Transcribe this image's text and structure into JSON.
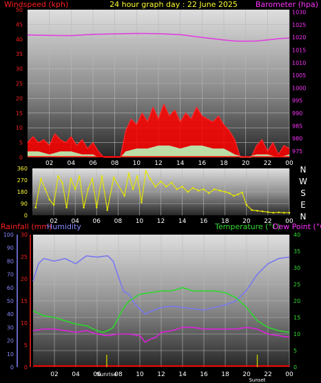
{
  "header": {
    "title": "24 hour graph day : 22 June 2025",
    "left_label": "Windspeed (kph)",
    "right_label": "Barometer (hpa)"
  },
  "colors": {
    "wind": "#ff0000",
    "gust": "#ff2a2a",
    "wind_avg": "#b8f5b8",
    "barometer": "#e040e0",
    "direction": "#e6e600",
    "rainfall": "#ff0000",
    "humidity": "#7878f0",
    "temperature": "#2cd82c",
    "dewpoint": "#dd22dd",
    "sun": "#c8c800",
    "axis_text_red": "#ff2020",
    "axis_text_magenta": "#ff33ff",
    "axis_text_blue": "#8888ff",
    "axis_text_green": "#33dd33",
    "axis_text_yellow": "#ffff33",
    "axis_text_white": "#ffffff"
  },
  "chart_data": [
    {
      "type": "line",
      "name": "wind-barometer",
      "title": "24 hour graph day : 22 June 2025",
      "x_ticks": [
        "02",
        "04",
        "06",
        "08",
        "10",
        "12",
        "14",
        "16",
        "18",
        "20",
        "22",
        "00"
      ],
      "x_range_hours": [
        0,
        24
      ],
      "y_left": {
        "label": "Windspeed (kph)",
        "range": [
          0,
          50
        ],
        "ticks": [
          "0",
          "5",
          "10",
          "15",
          "20",
          "25",
          "30",
          "35",
          "40",
          "45",
          "50"
        ]
      },
      "y_right": {
        "label": "Barometer (hpa)",
        "range": [
          972.5,
          1031
        ],
        "ticks": [
          "975",
          "980",
          "985",
          "990",
          "995",
          "1000",
          "1005",
          "1010",
          "1015",
          "1020",
          "1025",
          "1030"
        ]
      },
      "series": [
        {
          "name": "Barometer (hpa)",
          "axis": "right",
          "x": [
            0,
            2,
            4,
            6,
            8,
            10,
            12,
            14,
            16,
            18,
            19,
            20,
            21,
            22,
            23,
            24
          ],
          "values": [
            1021.0,
            1020.8,
            1020.7,
            1021.2,
            1021.4,
            1021.6,
            1021.5,
            1021.1,
            1020.0,
            1019.0,
            1018.6,
            1018.5,
            1018.6,
            1019.0,
            1019.5,
            1019.8
          ]
        },
        {
          "axis": "left",
          "x": [
            0,
            0.5,
            1,
            1.5,
            2,
            2.5,
            3,
            3.5,
            4,
            4.5,
            5,
            5.5,
            6,
            6.5,
            7,
            7.5,
            8,
            8.5,
            9,
            9.5,
            10,
            10.5,
            11,
            11.5,
            12,
            12.5,
            13,
            13.5,
            14,
            14.5,
            15,
            15.5,
            16,
            16.5,
            17,
            17.5,
            18,
            18.5,
            19,
            19.5,
            20,
            20.5,
            21,
            21.5,
            22,
            22.5,
            23,
            23.5,
            24
          ],
          "values": [
            5,
            7,
            5,
            6,
            4,
            8,
            6,
            5,
            7,
            4,
            6,
            3,
            5,
            2,
            0,
            0,
            0,
            0,
            9,
            13,
            11,
            15,
            12,
            17,
            13,
            18,
            14,
            16,
            12,
            15,
            13,
            17,
            14,
            13,
            12,
            14,
            11,
            9,
            6,
            0,
            0,
            0,
            4,
            6,
            2,
            5,
            1,
            4,
            3
          ]
        },
        {
          "axis": "left",
          "x": [
            0,
            1,
            2,
            3,
            4,
            5,
            6,
            6.5,
            7,
            8,
            8.5,
            9,
            10,
            11,
            12,
            13,
            14,
            15,
            16,
            17,
            18,
            18.5,
            19,
            20,
            21,
            22,
            23,
            24
          ],
          "values": [
            2,
            2,
            1,
            2,
            2,
            1,
            1,
            0,
            0,
            0,
            0,
            2,
            3,
            3,
            4,
            4,
            3,
            4,
            4,
            3,
            3,
            2,
            1,
            0,
            1,
            1,
            0,
            1
          ]
        }
      ]
    },
    {
      "type": "scatter",
      "name": "wind-direction",
      "x_ticks": [
        "02",
        "04",
        "06",
        "08",
        "10",
        "12",
        "14",
        "16",
        "18",
        "20",
        "22",
        "00"
      ],
      "x_range_hours": [
        0,
        24
      ],
      "y_left": {
        "range": [
          0,
          360
        ],
        "ticks": [
          "0",
          "90",
          "180",
          "270",
          "360"
        ]
      },
      "y_right": {
        "ticks": [
          "N",
          "W",
          "S",
          "E",
          "N"
        ]
      },
      "series": [
        {
          "axis": "left",
          "x": [
            0.3,
            0.8,
            1.2,
            1.6,
            2.0,
            2.4,
            2.8,
            3.2,
            3.6,
            4.0,
            4.4,
            4.8,
            5.2,
            5.6,
            6.0,
            6.5,
            7.0,
            7.6,
            8.6,
            9.0,
            9.4,
            9.8,
            10.2,
            10.6,
            11.0,
            11.5,
            12.0,
            12.5,
            13.0,
            13.5,
            14.0,
            14.5,
            15.0,
            15.5,
            16.0,
            16.5,
            17.0,
            17.5,
            18.0,
            18.4,
            18.8,
            19.2,
            19.6,
            20.0,
            20.5,
            21.0,
            21.5,
            22.0,
            22.5,
            23.0,
            23.5,
            24.0
          ],
          "values": [
            60,
            280,
            200,
            120,
            80,
            300,
            250,
            60,
            280,
            200,
            300,
            60,
            200,
            280,
            60,
            300,
            40,
            290,
            150,
            320,
            200,
            300,
            100,
            340,
            280,
            220,
            260,
            220,
            250,
            200,
            220,
            180,
            210,
            190,
            200,
            170,
            200,
            190,
            180,
            170,
            150,
            160,
            175,
            80,
            40,
            35,
            30,
            25,
            20,
            22,
            20,
            20
          ]
        }
      ]
    },
    {
      "type": "line",
      "name": "temp-humidity-rain",
      "x_ticks": [
        "02",
        "04",
        "06",
        "08",
        "10",
        "12",
        "14",
        "16",
        "18",
        "20",
        "22",
        "00"
      ],
      "x_range_hours": [
        0,
        24
      ],
      "sun_markers": [
        {
          "label": "Sunrise",
          "hour": 6.9
        },
        {
          "label": "Sunset",
          "hour": 21.0
        }
      ],
      "axis_labels": {
        "rainfall": "Rainfall (mm)",
        "humidity": "Humidity",
        "temperature": "Temperature (°C)",
        "dewpoint": "Dew Point (°C)"
      },
      "y_humidity": {
        "range": [
          0,
          100
        ],
        "ticks": [
          "0",
          "10",
          "20",
          "30",
          "40",
          "50",
          "60",
          "70",
          "80",
          "90",
          "100"
        ]
      },
      "y_rain": {
        "range": [
          0,
          30
        ],
        "ticks": [
          "0",
          "5",
          "10",
          "15",
          "20",
          "25",
          "30"
        ]
      },
      "y_temp": {
        "range": [
          0,
          40
        ],
        "ticks": [
          "0",
          "5",
          "10",
          "15",
          "20",
          "25",
          "30",
          "35",
          "40"
        ]
      },
      "series": [
        {
          "name": "Humidity",
          "axis": "humidity",
          "x": [
            0,
            0.5,
            1,
            2,
            3,
            4,
            5,
            6,
            7,
            7.5,
            8,
            8.5,
            9,
            9.5,
            10,
            10.5,
            11,
            12,
            13,
            14,
            15,
            16,
            17,
            18,
            19,
            20,
            21,
            22,
            23,
            24
          ],
          "values": [
            65,
            78,
            82,
            80,
            82,
            78,
            84,
            83,
            84,
            80,
            68,
            57,
            55,
            48,
            44,
            40,
            42,
            45,
            46,
            45,
            44,
            43,
            45,
            47,
            50,
            58,
            70,
            78,
            82,
            83
          ]
        },
        {
          "name": "Temperature (°C)",
          "axis": "temp",
          "x": [
            0,
            1,
            2,
            3,
            4,
            5,
            6,
            6.5,
            7,
            7.5,
            8,
            8.5,
            9,
            10,
            11,
            12,
            13,
            14,
            15,
            16,
            17,
            18,
            19,
            20,
            21,
            22,
            23,
            24
          ],
          "values": [
            17,
            15.5,
            15,
            14,
            13,
            12.5,
            11,
            10.5,
            11,
            12,
            15,
            18,
            20,
            22,
            22.5,
            23,
            23,
            24,
            23,
            23,
            23,
            22.5,
            21,
            18,
            14,
            12,
            11,
            10.5
          ]
        },
        {
          "name": "Dew Point (°C)",
          "axis": "temp",
          "x": [
            0,
            1,
            2,
            3,
            4,
            5,
            6,
            7,
            8,
            9,
            10,
            10.5,
            11,
            11.5,
            12,
            13,
            14,
            15,
            16,
            17,
            18,
            19,
            20,
            21,
            22,
            23,
            24
          ],
          "values": [
            11,
            11.5,
            11.5,
            11,
            10.5,
            11,
            10,
            9.5,
            10,
            10,
            9.5,
            7.5,
            8.5,
            9,
            10.5,
            11,
            12,
            12,
            11.5,
            11.5,
            11.5,
            11.5,
            12,
            11.5,
            10,
            9.5,
            9
          ]
        },
        {
          "name": "Rainfall (mm)",
          "axis": "rain",
          "x": [
            0,
            24
          ],
          "values": [
            0,
            0
          ]
        }
      ]
    }
  ]
}
